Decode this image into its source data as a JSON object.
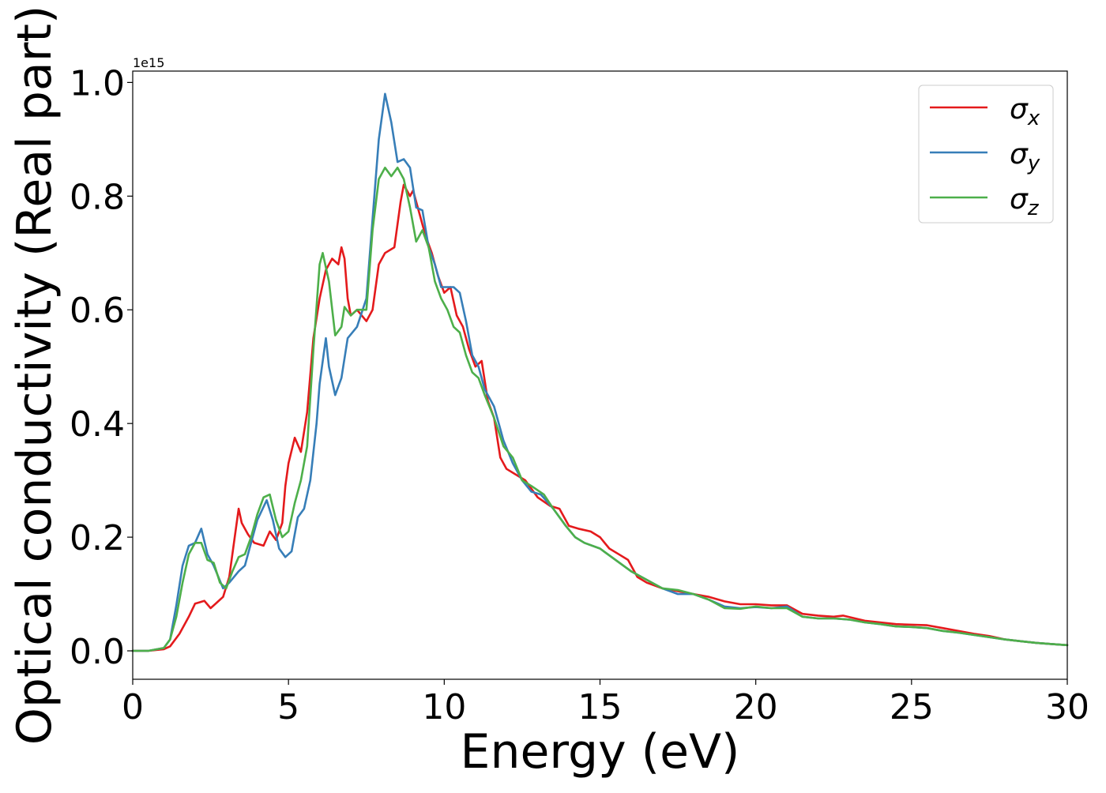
{
  "chart_data": {
    "type": "line",
    "xlabel": "Energy (eV)",
    "ylabel": "Optical conductivity (Real part)",
    "y_offset_label": "1e15",
    "xlim": [
      0,
      30
    ],
    "ylim": [
      -0.05,
      1.02
    ],
    "xticks": [
      0,
      5,
      10,
      15,
      20,
      25,
      30
    ],
    "xtick_labels": [
      "0",
      "5",
      "10",
      "15",
      "20",
      "25",
      "30"
    ],
    "yticks": [
      0.0,
      0.2,
      0.4,
      0.6,
      0.8,
      1.0
    ],
    "ytick_labels": [
      "0.0",
      "0.2",
      "0.4",
      "0.6",
      "0.8",
      "1.0"
    ],
    "grid": false,
    "legend_position": "top-right",
    "series": [
      {
        "name": "σx",
        "legend_symbol": "σ",
        "legend_subscript": "x",
        "color": "#e41a1c",
        "points": [
          [
            0,
            0
          ],
          [
            0.5,
            0
          ],
          [
            1.0,
            0.003
          ],
          [
            1.2,
            0.008
          ],
          [
            1.5,
            0.03
          ],
          [
            1.8,
            0.06
          ],
          [
            2.0,
            0.083
          ],
          [
            2.3,
            0.088
          ],
          [
            2.5,
            0.075
          ],
          [
            2.7,
            0.085
          ],
          [
            2.9,
            0.095
          ],
          [
            3.1,
            0.13
          ],
          [
            3.3,
            0.21
          ],
          [
            3.4,
            0.25
          ],
          [
            3.5,
            0.225
          ],
          [
            3.7,
            0.205
          ],
          [
            3.9,
            0.19
          ],
          [
            4.2,
            0.185
          ],
          [
            4.4,
            0.21
          ],
          [
            4.6,
            0.195
          ],
          [
            4.8,
            0.225
          ],
          [
            4.9,
            0.29
          ],
          [
            5.0,
            0.33
          ],
          [
            5.2,
            0.375
          ],
          [
            5.4,
            0.35
          ],
          [
            5.6,
            0.42
          ],
          [
            5.8,
            0.55
          ],
          [
            6.0,
            0.62
          ],
          [
            6.2,
            0.67
          ],
          [
            6.4,
            0.69
          ],
          [
            6.6,
            0.68
          ],
          [
            6.7,
            0.71
          ],
          [
            6.8,
            0.69
          ],
          [
            6.9,
            0.62
          ],
          [
            7.0,
            0.59
          ],
          [
            7.2,
            0.6
          ],
          [
            7.5,
            0.58
          ],
          [
            7.7,
            0.6
          ],
          [
            7.9,
            0.68
          ],
          [
            8.1,
            0.7
          ],
          [
            8.4,
            0.71
          ],
          [
            8.6,
            0.79
          ],
          [
            8.7,
            0.82
          ],
          [
            8.9,
            0.8
          ],
          [
            9.0,
            0.81
          ],
          [
            9.2,
            0.77
          ],
          [
            9.4,
            0.73
          ],
          [
            9.6,
            0.7
          ],
          [
            9.8,
            0.66
          ],
          [
            10.0,
            0.63
          ],
          [
            10.2,
            0.64
          ],
          [
            10.4,
            0.59
          ],
          [
            10.6,
            0.57
          ],
          [
            10.8,
            0.53
          ],
          [
            11.0,
            0.5
          ],
          [
            11.2,
            0.51
          ],
          [
            11.4,
            0.44
          ],
          [
            11.6,
            0.41
          ],
          [
            11.8,
            0.34
          ],
          [
            12.0,
            0.32
          ],
          [
            12.3,
            0.31
          ],
          [
            12.6,
            0.3
          ],
          [
            13.0,
            0.27
          ],
          [
            13.4,
            0.255
          ],
          [
            13.7,
            0.25
          ],
          [
            14.0,
            0.22
          ],
          [
            14.3,
            0.215
          ],
          [
            14.7,
            0.21
          ],
          [
            15.0,
            0.2
          ],
          [
            15.3,
            0.18
          ],
          [
            15.6,
            0.17
          ],
          [
            15.9,
            0.16
          ],
          [
            16.2,
            0.13
          ],
          [
            16.5,
            0.12
          ],
          [
            17.0,
            0.11
          ],
          [
            17.5,
            0.105
          ],
          [
            18.0,
            0.1
          ],
          [
            18.5,
            0.095
          ],
          [
            19.0,
            0.087
          ],
          [
            19.5,
            0.082
          ],
          [
            20.0,
            0.082
          ],
          [
            20.5,
            0.08
          ],
          [
            21.0,
            0.08
          ],
          [
            21.5,
            0.065
          ],
          [
            22.0,
            0.062
          ],
          [
            22.5,
            0.06
          ],
          [
            22.8,
            0.062
          ],
          [
            23.5,
            0.053
          ],
          [
            24.0,
            0.05
          ],
          [
            24.5,
            0.047
          ],
          [
            25.0,
            0.046
          ],
          [
            25.5,
            0.045
          ],
          [
            26.0,
            0.04
          ],
          [
            26.5,
            0.035
          ],
          [
            27.0,
            0.03
          ],
          [
            27.5,
            0.026
          ],
          [
            28.0,
            0.02
          ],
          [
            28.5,
            0.017
          ],
          [
            29.0,
            0.014
          ],
          [
            29.5,
            0.012
          ],
          [
            30.0,
            0.01
          ]
        ]
      },
      {
        "name": "σy",
        "legend_symbol": "σ",
        "legend_subscript": "y",
        "color": "#377eb8",
        "points": [
          [
            0,
            0
          ],
          [
            0.5,
            0
          ],
          [
            1.0,
            0.005
          ],
          [
            1.2,
            0.02
          ],
          [
            1.4,
            0.08
          ],
          [
            1.6,
            0.15
          ],
          [
            1.8,
            0.185
          ],
          [
            2.0,
            0.19
          ],
          [
            2.2,
            0.215
          ],
          [
            2.4,
            0.17
          ],
          [
            2.6,
            0.15
          ],
          [
            2.9,
            0.11
          ],
          [
            3.1,
            0.12
          ],
          [
            3.4,
            0.14
          ],
          [
            3.6,
            0.15
          ],
          [
            3.8,
            0.19
          ],
          [
            4.0,
            0.23
          ],
          [
            4.3,
            0.265
          ],
          [
            4.5,
            0.23
          ],
          [
            4.7,
            0.18
          ],
          [
            4.9,
            0.165
          ],
          [
            5.1,
            0.175
          ],
          [
            5.3,
            0.235
          ],
          [
            5.5,
            0.25
          ],
          [
            5.7,
            0.3
          ],
          [
            5.9,
            0.4
          ],
          [
            6.0,
            0.47
          ],
          [
            6.2,
            0.55
          ],
          [
            6.3,
            0.5
          ],
          [
            6.5,
            0.45
          ],
          [
            6.7,
            0.48
          ],
          [
            6.9,
            0.55
          ],
          [
            7.2,
            0.57
          ],
          [
            7.5,
            0.62
          ],
          [
            7.7,
            0.76
          ],
          [
            7.9,
            0.9
          ],
          [
            8.1,
            0.98
          ],
          [
            8.3,
            0.93
          ],
          [
            8.5,
            0.86
          ],
          [
            8.7,
            0.865
          ],
          [
            8.9,
            0.85
          ],
          [
            9.1,
            0.78
          ],
          [
            9.3,
            0.775
          ],
          [
            9.5,
            0.71
          ],
          [
            9.7,
            0.68
          ],
          [
            9.9,
            0.64
          ],
          [
            10.1,
            0.64
          ],
          [
            10.3,
            0.64
          ],
          [
            10.5,
            0.63
          ],
          [
            10.7,
            0.58
          ],
          [
            10.9,
            0.52
          ],
          [
            11.1,
            0.5
          ],
          [
            11.3,
            0.46
          ],
          [
            11.6,
            0.43
          ],
          [
            11.9,
            0.37
          ],
          [
            12.2,
            0.33
          ],
          [
            12.5,
            0.3
          ],
          [
            12.8,
            0.28
          ],
          [
            13.1,
            0.275
          ],
          [
            13.5,
            0.25
          ],
          [
            13.9,
            0.22
          ],
          [
            14.2,
            0.2
          ],
          [
            14.5,
            0.19
          ],
          [
            15.0,
            0.18
          ],
          [
            15.5,
            0.16
          ],
          [
            16.0,
            0.14
          ],
          [
            16.5,
            0.125
          ],
          [
            17.0,
            0.11
          ],
          [
            17.5,
            0.1
          ],
          [
            18.0,
            0.1
          ],
          [
            18.5,
            0.09
          ],
          [
            19.0,
            0.078
          ],
          [
            19.5,
            0.075
          ],
          [
            20.0,
            0.077
          ],
          [
            20.5,
            0.075
          ],
          [
            21.0,
            0.078
          ],
          [
            21.5,
            0.06
          ],
          [
            22.0,
            0.057
          ],
          [
            22.5,
            0.057
          ],
          [
            23.0,
            0.055
          ],
          [
            23.5,
            0.05
          ],
          [
            24.0,
            0.047
          ],
          [
            24.5,
            0.043
          ],
          [
            25.0,
            0.042
          ],
          [
            25.5,
            0.04
          ],
          [
            26.0,
            0.035
          ],
          [
            26.5,
            0.032
          ],
          [
            27.0,
            0.028
          ],
          [
            27.5,
            0.024
          ],
          [
            28.0,
            0.02
          ],
          [
            28.5,
            0.017
          ],
          [
            29.0,
            0.014
          ],
          [
            29.5,
            0.012
          ],
          [
            30.0,
            0.01
          ]
        ]
      },
      {
        "name": "σz",
        "legend_symbol": "σ",
        "legend_subscript": "z",
        "color": "#4daf4a",
        "points": [
          [
            0,
            0
          ],
          [
            0.5,
            0
          ],
          [
            1.0,
            0.005
          ],
          [
            1.2,
            0.02
          ],
          [
            1.4,
            0.06
          ],
          [
            1.6,
            0.12
          ],
          [
            1.8,
            0.17
          ],
          [
            2.0,
            0.19
          ],
          [
            2.2,
            0.19
          ],
          [
            2.4,
            0.16
          ],
          [
            2.6,
            0.155
          ],
          [
            2.8,
            0.12
          ],
          [
            3.0,
            0.11
          ],
          [
            3.2,
            0.14
          ],
          [
            3.4,
            0.165
          ],
          [
            3.6,
            0.17
          ],
          [
            3.8,
            0.2
          ],
          [
            4.0,
            0.24
          ],
          [
            4.2,
            0.27
          ],
          [
            4.4,
            0.275
          ],
          [
            4.6,
            0.23
          ],
          [
            4.8,
            0.2
          ],
          [
            5.0,
            0.21
          ],
          [
            5.2,
            0.26
          ],
          [
            5.4,
            0.3
          ],
          [
            5.6,
            0.36
          ],
          [
            5.8,
            0.53
          ],
          [
            6.0,
            0.68
          ],
          [
            6.1,
            0.7
          ],
          [
            6.3,
            0.65
          ],
          [
            6.5,
            0.555
          ],
          [
            6.7,
            0.57
          ],
          [
            6.8,
            0.605
          ],
          [
            7.0,
            0.59
          ],
          [
            7.2,
            0.6
          ],
          [
            7.5,
            0.6
          ],
          [
            7.7,
            0.74
          ],
          [
            7.9,
            0.83
          ],
          [
            8.1,
            0.85
          ],
          [
            8.3,
            0.835
          ],
          [
            8.5,
            0.85
          ],
          [
            8.7,
            0.83
          ],
          [
            8.9,
            0.78
          ],
          [
            9.1,
            0.72
          ],
          [
            9.3,
            0.74
          ],
          [
            9.5,
            0.71
          ],
          [
            9.7,
            0.65
          ],
          [
            9.9,
            0.62
          ],
          [
            10.1,
            0.6
          ],
          [
            10.3,
            0.57
          ],
          [
            10.5,
            0.56
          ],
          [
            10.7,
            0.52
          ],
          [
            10.9,
            0.49
          ],
          [
            11.1,
            0.48
          ],
          [
            11.3,
            0.45
          ],
          [
            11.6,
            0.41
          ],
          [
            11.9,
            0.36
          ],
          [
            12.2,
            0.34
          ],
          [
            12.5,
            0.3
          ],
          [
            12.8,
            0.29
          ],
          [
            13.2,
            0.275
          ],
          [
            13.5,
            0.25
          ],
          [
            13.9,
            0.22
          ],
          [
            14.2,
            0.2
          ],
          [
            14.5,
            0.19
          ],
          [
            15.0,
            0.18
          ],
          [
            15.5,
            0.16
          ],
          [
            16.0,
            0.14
          ],
          [
            16.5,
            0.125
          ],
          [
            17.0,
            0.11
          ],
          [
            17.5,
            0.107
          ],
          [
            18.0,
            0.1
          ],
          [
            18.5,
            0.09
          ],
          [
            19.0,
            0.075
          ],
          [
            19.5,
            0.074
          ],
          [
            20.0,
            0.078
          ],
          [
            20.5,
            0.075
          ],
          [
            21.0,
            0.075
          ],
          [
            21.5,
            0.06
          ],
          [
            22.0,
            0.057
          ],
          [
            22.5,
            0.057
          ],
          [
            23.0,
            0.055
          ],
          [
            23.5,
            0.05
          ],
          [
            24.0,
            0.047
          ],
          [
            24.5,
            0.043
          ],
          [
            25.0,
            0.042
          ],
          [
            25.5,
            0.04
          ],
          [
            26.0,
            0.035
          ],
          [
            26.5,
            0.032
          ],
          [
            27.0,
            0.028
          ],
          [
            27.5,
            0.024
          ],
          [
            28.0,
            0.02
          ],
          [
            28.5,
            0.017
          ],
          [
            29.0,
            0.014
          ],
          [
            29.5,
            0.012
          ],
          [
            30.0,
            0.01
          ]
        ]
      }
    ]
  }
}
